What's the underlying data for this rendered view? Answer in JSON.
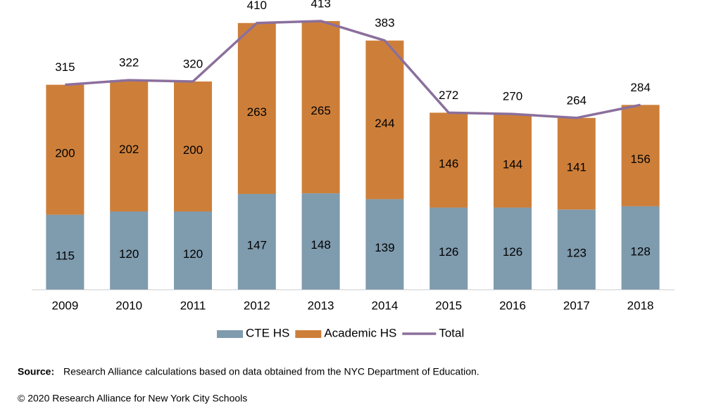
{
  "chart_data": {
    "type": "bar-line",
    "categories": [
      "2009",
      "2010",
      "2011",
      "2012",
      "2013",
      "2014",
      "2015",
      "2016",
      "2017",
      "2018"
    ],
    "series": [
      {
        "name": "CTE HS",
        "color": "#7f9bae",
        "values": [
          115,
          120,
          120,
          147,
          148,
          139,
          126,
          126,
          123,
          128
        ]
      },
      {
        "name": "Academic HS",
        "color": "#cd7f3a",
        "values": [
          200,
          202,
          200,
          263,
          265,
          244,
          146,
          144,
          141,
          156
        ]
      },
      {
        "name": "Total",
        "color": "#8b6f9c",
        "type": "line",
        "values": [
          315,
          322,
          320,
          410,
          413,
          383,
          272,
          270,
          264,
          284
        ]
      }
    ],
    "source_label": "Source:",
    "source": "Research Alliance calculations based on data obtained from the NYC Department of Education.",
    "copyright": "© 2020 Research Alliance for New York City Schools"
  }
}
